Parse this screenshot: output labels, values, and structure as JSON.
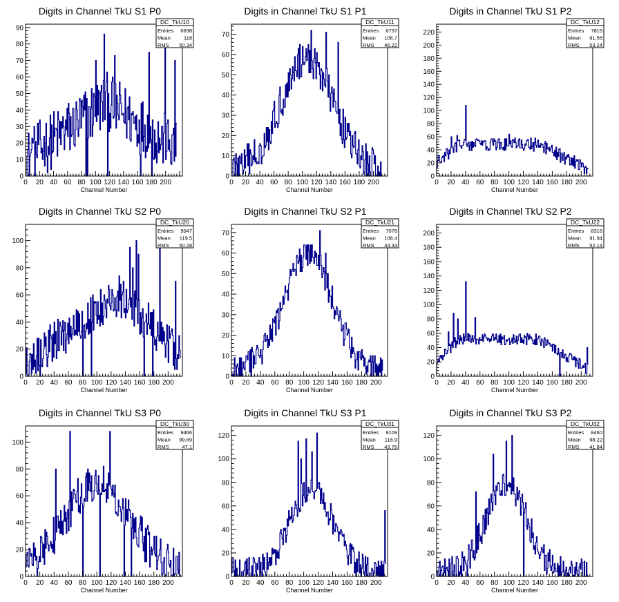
{
  "style": {
    "line_color": "#00008b",
    "axis_color": "#000000",
    "background": "#ffffff"
  },
  "chart_data": [
    {
      "type": "histogram",
      "title": "Digits in Channel TkU S1 P0",
      "xlabel": "Channel Number",
      "xlim": [
        0,
        224
      ],
      "ylim": [
        0,
        92
      ],
      "xticks": [
        0,
        20,
        40,
        60,
        80,
        100,
        120,
        140,
        160,
        180,
        200
      ],
      "yticks": [
        0,
        10,
        20,
        30,
        40,
        50,
        60,
        70,
        80,
        90
      ],
      "stats": {
        "name": "DC_TkU10",
        "rows": [
          [
            "Entries",
            "6638"
          ],
          [
            "Mean",
            "118"
          ],
          [
            "RMS",
            "50.34"
          ]
        ]
      },
      "series": [
        {
          "shape": "rise-fall",
          "peak": 45,
          "peak_x": 115,
          "x_end": 216,
          "noise": 18,
          "spikes": [
            [
              10,
              20
            ],
            [
              18,
              19
            ],
            [
              28,
              20
            ],
            [
              54,
              30
            ],
            [
              86,
              0
            ],
            [
              88,
              0
            ],
            [
              100,
              70
            ],
            [
              112,
              86
            ],
            [
              117,
              0
            ],
            [
              127,
              73
            ],
            [
              164,
              0
            ],
            [
              176,
              75
            ],
            [
              180,
              0
            ],
            [
              199,
              80
            ],
            [
              213,
              70
            ]
          ]
        }
      ]
    },
    {
      "type": "histogram",
      "title": "Digits in Channel TkU S1 P1",
      "xlabel": "Channel Number",
      "xlim": [
        0,
        220
      ],
      "ylim": [
        0,
        75
      ],
      "xticks": [
        0,
        20,
        40,
        60,
        80,
        100,
        120,
        140,
        160,
        180,
        200
      ],
      "yticks": [
        0,
        10,
        20,
        30,
        40,
        50,
        60,
        70
      ],
      "stats": {
        "name": "DC_TkU11",
        "rows": [
          [
            "Entries",
            "6737"
          ],
          [
            "Mean",
            "106.7"
          ],
          [
            "RMS",
            "46.22"
          ]
        ]
      },
      "series": [
        {
          "shape": "bell",
          "peak": 55,
          "peak_x": 106,
          "width": 52,
          "x_end": 212,
          "noise": 9,
          "spikes": [
            [
              96,
              65
            ],
            [
              112,
              72
            ],
            [
              120,
              61
            ],
            [
              133,
              71
            ],
            [
              150,
              66
            ],
            [
              190,
              0
            ],
            [
              197,
              0
            ],
            [
              204,
              0
            ]
          ]
        }
      ]
    },
    {
      "type": "histogram",
      "title": "Digits in Channel TkU S1 P2",
      "xlabel": "Channel Number",
      "xlim": [
        0,
        216
      ],
      "ylim": [
        0,
        232
      ],
      "xticks": [
        0,
        20,
        40,
        60,
        80,
        100,
        120,
        140,
        160,
        180,
        200
      ],
      "yticks": [
        0,
        20,
        40,
        60,
        80,
        100,
        120,
        140,
        160,
        180,
        200,
        220
      ],
      "stats": {
        "name": "DC_TkU12",
        "rows": [
          [
            "Entries",
            "7815"
          ],
          [
            "Mean",
            "91.55"
          ],
          [
            "RMS",
            "53.24"
          ]
        ]
      },
      "series": [
        {
          "shape": "plateau",
          "peak": 48,
          "peak_x": 95,
          "x_end": 210,
          "noise": 10,
          "spikes": [
            [
              20,
              60
            ],
            [
              28,
              62
            ],
            [
              40,
              108
            ],
            [
              58,
              55
            ],
            [
              100,
              64
            ],
            [
              130,
              58
            ]
          ]
        }
      ]
    },
    {
      "type": "histogram",
      "title": "Digits in Channel TkU S2 P0",
      "xlabel": "Channel Number",
      "xlim": [
        0,
        220
      ],
      "ylim": [
        0,
        112
      ],
      "xticks": [
        0,
        20,
        40,
        60,
        80,
        100,
        120,
        140,
        160,
        180,
        200
      ],
      "yticks": [
        0,
        20,
        40,
        60,
        80,
        100
      ],
      "stats": {
        "name": "DC_TkU20",
        "rows": [
          [
            "Entries",
            "9047"
          ],
          [
            "Mean",
            "119.5"
          ],
          [
            "RMS",
            "50.28"
          ]
        ]
      },
      "series": [
        {
          "shape": "rise-fall",
          "peak": 60,
          "peak_x": 130,
          "x_end": 218,
          "noise": 15,
          "spikes": [
            [
              20,
              0
            ],
            [
              80,
              0
            ],
            [
              92,
              0
            ],
            [
              146,
              95
            ],
            [
              150,
              80
            ],
            [
              155,
              100
            ],
            [
              158,
              90
            ],
            [
              166,
              0
            ],
            [
              178,
              0
            ],
            [
              188,
              95
            ],
            [
              206,
              30
            ],
            [
              210,
              70
            ]
          ]
        }
      ]
    },
    {
      "type": "histogram",
      "title": "Digits in Channel TkU S2 P1",
      "xlabel": "Channel Number",
      "xlim": [
        0,
        216
      ],
      "ylim": [
        0,
        74
      ],
      "xticks": [
        0,
        20,
        40,
        60,
        80,
        100,
        120,
        140,
        160,
        180,
        200
      ],
      "yticks": [
        0,
        10,
        20,
        30,
        40,
        50,
        60,
        70
      ],
      "stats": {
        "name": "DC_TkU21",
        "rows": [
          [
            "Entries",
            "7078"
          ],
          [
            "Mean",
            "108.4"
          ],
          [
            "RMS",
            "44.33"
          ]
        ]
      },
      "series": [
        {
          "shape": "bell",
          "peak": 57,
          "peak_x": 106,
          "width": 47,
          "x_end": 210,
          "noise": 7,
          "spikes": [
            [
              94,
              62
            ],
            [
              106,
              64
            ],
            [
              122,
              71
            ],
            [
              130,
              60
            ]
          ]
        }
      ]
    },
    {
      "type": "histogram",
      "title": "Digits in Channel TkU S2 P2",
      "xlabel": "Channel Number",
      "xlim": [
        0,
        216
      ],
      "ylim": [
        0,
        212
      ],
      "xticks": [
        0,
        20,
        40,
        60,
        80,
        100,
        120,
        140,
        160,
        180,
        200
      ],
      "yticks": [
        0,
        20,
        40,
        60,
        80,
        100,
        120,
        140,
        160,
        180,
        200
      ],
      "stats": {
        "name": "DC_TkU22",
        "rows": [
          [
            "Entries",
            "8316"
          ],
          [
            "Mean",
            "91.94"
          ],
          [
            "RMS",
            "52.14"
          ]
        ]
      },
      "series": [
        {
          "shape": "plateau",
          "peak": 52,
          "peak_x": 100,
          "x_end": 210,
          "noise": 8,
          "spikes": [
            [
              16,
              62
            ],
            [
              23,
              88
            ],
            [
              29,
              80
            ],
            [
              40,
              132
            ],
            [
              53,
              82
            ],
            [
              170,
              0
            ],
            [
              208,
              40
            ]
          ]
        }
      ]
    },
    {
      "type": "histogram",
      "title": "Digits in Channel TkU S3 P0",
      "xlabel": "Channel Number",
      "xlim": [
        0,
        220
      ],
      "ylim": [
        0,
        112
      ],
      "xticks": [
        0,
        20,
        40,
        60,
        80,
        100,
        120,
        140,
        160,
        180,
        200
      ],
      "yticks": [
        0,
        20,
        40,
        60,
        80,
        100
      ],
      "stats": {
        "name": "DC_TkU30",
        "rows": [
          [
            "Entries",
            "9466"
          ],
          [
            "Mean",
            "99.69"
          ],
          [
            "RMS",
            "47.1"
          ]
        ]
      },
      "series": [
        {
          "shape": "bell",
          "peak": 68,
          "peak_x": 100,
          "width": 64,
          "x_end": 218,
          "noise": 15,
          "spikes": [
            [
              16,
              0
            ],
            [
              42,
              80
            ],
            [
              62,
              108
            ],
            [
              80,
              0
            ],
            [
              104,
              0
            ],
            [
              118,
              108
            ],
            [
              138,
              0
            ],
            [
              148,
              0
            ]
          ]
        }
      ]
    },
    {
      "type": "histogram",
      "title": "Digits in Channel TkU S3 P1",
      "xlabel": "Channel Number",
      "xlim": [
        0,
        216
      ],
      "ylim": [
        0,
        128
      ],
      "xticks": [
        0,
        20,
        40,
        60,
        80,
        100,
        120,
        140,
        160,
        180,
        200
      ],
      "yticks": [
        0,
        20,
        40,
        60,
        80,
        100,
        120
      ],
      "stats": {
        "name": "DC_TkU31",
        "rows": [
          [
            "Entries",
            "9109"
          ],
          [
            "Mean",
            "116.9"
          ],
          [
            "RMS",
            "43.78"
          ]
        ]
      },
      "series": [
        {
          "shape": "bell",
          "peak": 72,
          "peak_x": 110,
          "width": 42,
          "x_end": 214,
          "noise": 12,
          "spikes": [
            [
              92,
              115
            ],
            [
              96,
              100
            ],
            [
              103,
              117
            ],
            [
              111,
              106
            ],
            [
              118,
              122
            ],
            [
              212,
              56
            ]
          ]
        }
      ]
    },
    {
      "type": "histogram",
      "title": "Digits in Channel TkU S3 P2",
      "xlabel": "Channel Number",
      "xlim": [
        0,
        216
      ],
      "ylim": [
        0,
        128
      ],
      "xticks": [
        0,
        20,
        40,
        60,
        80,
        100,
        120,
        140,
        160,
        180,
        200
      ],
      "yticks": [
        0,
        20,
        40,
        60,
        80,
        100,
        120
      ],
      "stats": {
        "name": "DC_TkU32",
        "rows": [
          [
            "Entries",
            "8460"
          ],
          [
            "Mean",
            "98.22"
          ],
          [
            "RMS",
            "41.84"
          ]
        ]
      },
      "series": [
        {
          "shape": "bell",
          "peak": 76,
          "peak_x": 96,
          "width": 40,
          "x_end": 212,
          "noise": 12,
          "spikes": [
            [
              42,
              0
            ],
            [
              54,
              72
            ],
            [
              78,
              104
            ],
            [
              96,
              115
            ],
            [
              104,
              120
            ],
            [
              120,
              0
            ],
            [
              168,
              0
            ]
          ]
        }
      ]
    }
  ]
}
